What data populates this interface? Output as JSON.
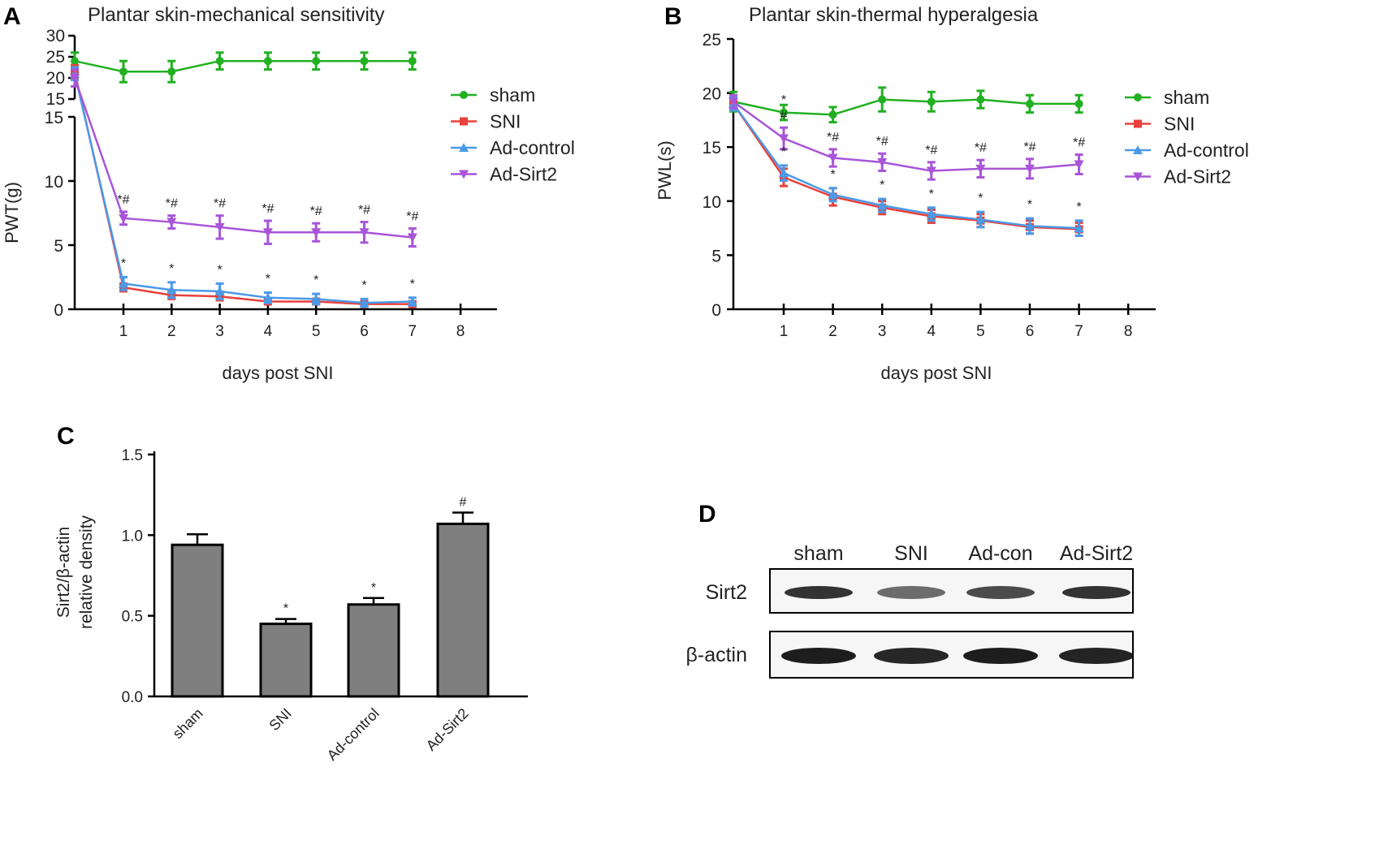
{
  "chart_data": [
    {
      "panel": "A",
      "type": "line",
      "title": "Plantar skin-mechanical sensitivity",
      "xlabel": "days post SNI",
      "ylabel": "PWT(g)",
      "x": [
        0,
        1,
        2,
        3,
        4,
        5,
        6,
        7
      ],
      "xticks": [
        "1",
        "2",
        "3",
        "4",
        "5",
        "6",
        "7",
        "8"
      ],
      "ylim_lower": [
        0,
        15
      ],
      "ylim_upper": [
        15,
        30
      ],
      "yticks_lower": [
        "0",
        "5",
        "10",
        "15"
      ],
      "yticks_upper": [
        "15",
        "20",
        "25",
        "30"
      ],
      "series": [
        {
          "name": "sham",
          "color": "#22b022",
          "marker": "circle",
          "values": [
            24,
            21.5,
            21.5,
            24,
            24,
            24,
            24,
            24
          ],
          "err": [
            2,
            2.5,
            2.5,
            2,
            2,
            2,
            2,
            2
          ]
        },
        {
          "name": "SNI",
          "color": "#e8403a",
          "marker": "square",
          "values": [
            21.5,
            1.7,
            1.1,
            1.0,
            0.6,
            0.6,
            0.4,
            0.4
          ],
          "err": [
            1.5,
            0.3,
            0.3,
            0.3,
            0.2,
            0.2,
            0.2,
            0.2
          ]
        },
        {
          "name": "Ad-control",
          "color": "#4a9ae8",
          "marker": "triangle-up",
          "values": [
            21,
            2.0,
            1.5,
            1.4,
            0.9,
            0.8,
            0.5,
            0.6
          ],
          "err": [
            1.5,
            0.5,
            0.6,
            0.6,
            0.4,
            0.4,
            0.3,
            0.3
          ]
        },
        {
          "name": "Ad-Sirt2",
          "color": "#a855d8",
          "marker": "triangle-down",
          "values": [
            20,
            7.1,
            6.8,
            6.4,
            6.0,
            6.0,
            6.0,
            5.6
          ],
          "err": [
            2,
            0.5,
            0.5,
            0.9,
            0.9,
            0.7,
            0.8,
            0.7
          ]
        }
      ],
      "annotations_top": [
        "*#",
        "*#",
        "*#",
        "*#",
        "*#",
        "*#",
        "*#"
      ],
      "annotations_bottom": [
        "*",
        "*",
        "*",
        "*",
        "*",
        "*",
        "*"
      ],
      "legend": "right"
    },
    {
      "panel": "B",
      "type": "line",
      "title": "Plantar skin-thermal hyperalgesia",
      "xlabel": "days post SNI",
      "ylabel": "PWL(s)",
      "x": [
        0,
        1,
        2,
        3,
        4,
        5,
        6,
        7
      ],
      "xticks": [
        "1",
        "2",
        "3",
        "4",
        "5",
        "6",
        "7",
        "8"
      ],
      "ylim": [
        0,
        25
      ],
      "yticks": [
        "0",
        "5",
        "10",
        "15",
        "20",
        "25"
      ],
      "series": [
        {
          "name": "sham",
          "color": "#22b022",
          "marker": "circle",
          "values": [
            19.2,
            18.2,
            18.0,
            19.4,
            19.2,
            19.4,
            19.0,
            19.0
          ],
          "err": [
            0.9,
            0.7,
            0.7,
            1.1,
            0.9,
            0.8,
            0.8,
            0.8
          ]
        },
        {
          "name": "SNI",
          "color": "#e8403a",
          "marker": "square",
          "values": [
            19.0,
            12.2,
            10.4,
            9.4,
            8.6,
            8.2,
            7.6,
            7.4
          ],
          "err": [
            0.6,
            0.8,
            0.8,
            0.6,
            0.6,
            0.6,
            0.6,
            0.6
          ]
        },
        {
          "name": "Ad-control",
          "color": "#4a9ae8",
          "marker": "triangle-up",
          "values": [
            19.0,
            12.6,
            10.6,
            9.6,
            8.8,
            8.3,
            7.7,
            7.5
          ],
          "err": [
            0.6,
            0.7,
            0.6,
            0.6,
            0.6,
            0.7,
            0.7,
            0.7
          ]
        },
        {
          "name": "Ad-Sirt2",
          "color": "#a855d8",
          "marker": "triangle-down",
          "values": [
            19.2,
            15.8,
            14.0,
            13.6,
            12.8,
            13.0,
            13.0,
            13.4
          ],
          "err": [
            0.6,
            1.0,
            0.8,
            0.8,
            0.8,
            0.8,
            0.9,
            0.9
          ]
        }
      ],
      "annotations_top": [
        "*\n#",
        "*#",
        "*#",
        "*#",
        "*#",
        "*#",
        "*#"
      ],
      "annotations_bottom": [
        "*",
        "*",
        "*",
        "*",
        "*",
        "*",
        "*"
      ],
      "legend": "right"
    },
    {
      "panel": "C",
      "type": "bar",
      "ylabel": "Sirt2/β-actin\nrelative density",
      "categories": [
        "sham",
        "SNI",
        "Ad-control",
        "Ad-Sirt2"
      ],
      "values": [
        0.94,
        0.45,
        0.57,
        1.07
      ],
      "err": [
        0.065,
        0.03,
        0.04,
        0.07
      ],
      "annotations": [
        "",
        "*",
        "*",
        "#"
      ],
      "ylim": [
        0,
        1.5
      ],
      "yticks": [
        "0.0",
        "0.5",
        "1.0",
        "1.5"
      ],
      "bar_color": "#7f7f7f"
    }
  ],
  "panel_labels": [
    "A",
    "B",
    "C",
    "D"
  ],
  "blot": {
    "lanes": [
      "sham",
      "SNI",
      "Ad-con",
      "Ad-Sirt2"
    ],
    "rows": [
      "Sirt2",
      "β-actin"
    ],
    "sirt2_intensity": [
      0.85,
      0.6,
      0.75,
      0.85
    ],
    "actin_intensity": [
      0.95,
      0.9,
      0.95,
      0.92
    ]
  }
}
